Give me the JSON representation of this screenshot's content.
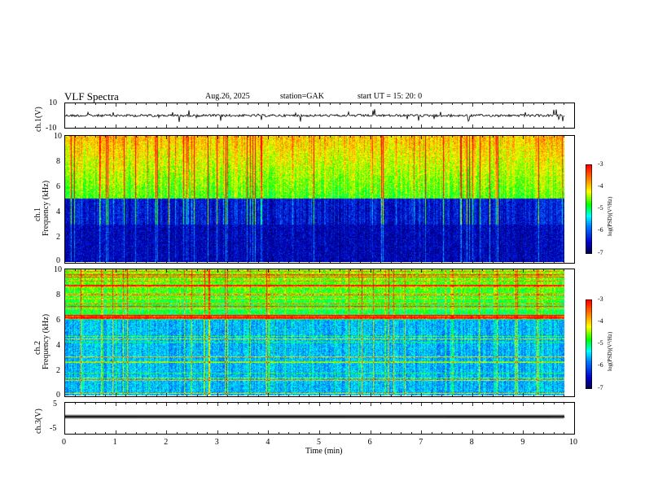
{
  "header": {
    "title": "VLF  Spectra",
    "date": "Aug.26, 2025",
    "station": "station=GAK",
    "start_ut": "start  UT =   15: 20: 0"
  },
  "colors": {
    "waveform": "#000000",
    "spectrogram_low": "#000060",
    "spectrogram_high": "#ff0000",
    "spectrogram_mid": "#00ff00"
  },
  "chart_data": [
    {
      "type": "line",
      "panel": "ch1-waveform",
      "ylabel": "ch.1(V)",
      "ylim": [
        -10,
        10
      ],
      "yticks": [
        "10",
        "-10"
      ],
      "xlim": [
        0,
        10
      ],
      "approx_baseline": 0
    },
    {
      "type": "heatmap",
      "panel": "ch1-spectrogram",
      "ylabel_top": "ch.1",
      "ylabel": "Frequency (kHz)",
      "ylim": [
        0,
        10
      ],
      "yticks": [
        "0",
        "2",
        "4",
        "6",
        "8",
        "10"
      ],
      "xlim": [
        0,
        9.8
      ],
      "colorbar": {
        "label": "log(PSD)(V²/Hz)",
        "range": [
          -7,
          -3
        ],
        "ticks": [
          "-3",
          "-4",
          "-5",
          "-6",
          "-7"
        ]
      },
      "background_level_above_khz": 5,
      "low_freq_level": -6.5,
      "high_freq_level": -4.6
    },
    {
      "type": "heatmap",
      "panel": "ch2-spectrogram",
      "ylabel_top": "ch.2",
      "ylabel": "Frequency (kHz)",
      "ylim": [
        0,
        10
      ],
      "yticks": [
        "0",
        "2",
        "4",
        "6",
        "8",
        "10"
      ],
      "xlim": [
        0,
        9.8
      ],
      "colorbar": {
        "label": "log(PSD)(V²/Hz)",
        "range": [
          -7,
          -3
        ],
        "ticks": [
          "-3",
          "-4",
          "-5",
          "-6",
          "-7"
        ]
      },
      "strong_band_khz": 6.2,
      "low_freq_level": -5.8,
      "high_freq_level": -5.0
    },
    {
      "type": "line",
      "panel": "ch3-waveform",
      "ylabel": "ch.3(V)",
      "ylim": [
        -5,
        5
      ],
      "yticks": [
        "5",
        "-5"
      ],
      "xlim": [
        0,
        10
      ],
      "approx_baseline": -1.5
    }
  ],
  "xaxis": {
    "label": "Time  (min)",
    "ticks": [
      "0",
      "1",
      "2",
      "3",
      "4",
      "5",
      "6",
      "7",
      "8",
      "9",
      "10"
    ],
    "range": [
      0,
      10
    ]
  }
}
